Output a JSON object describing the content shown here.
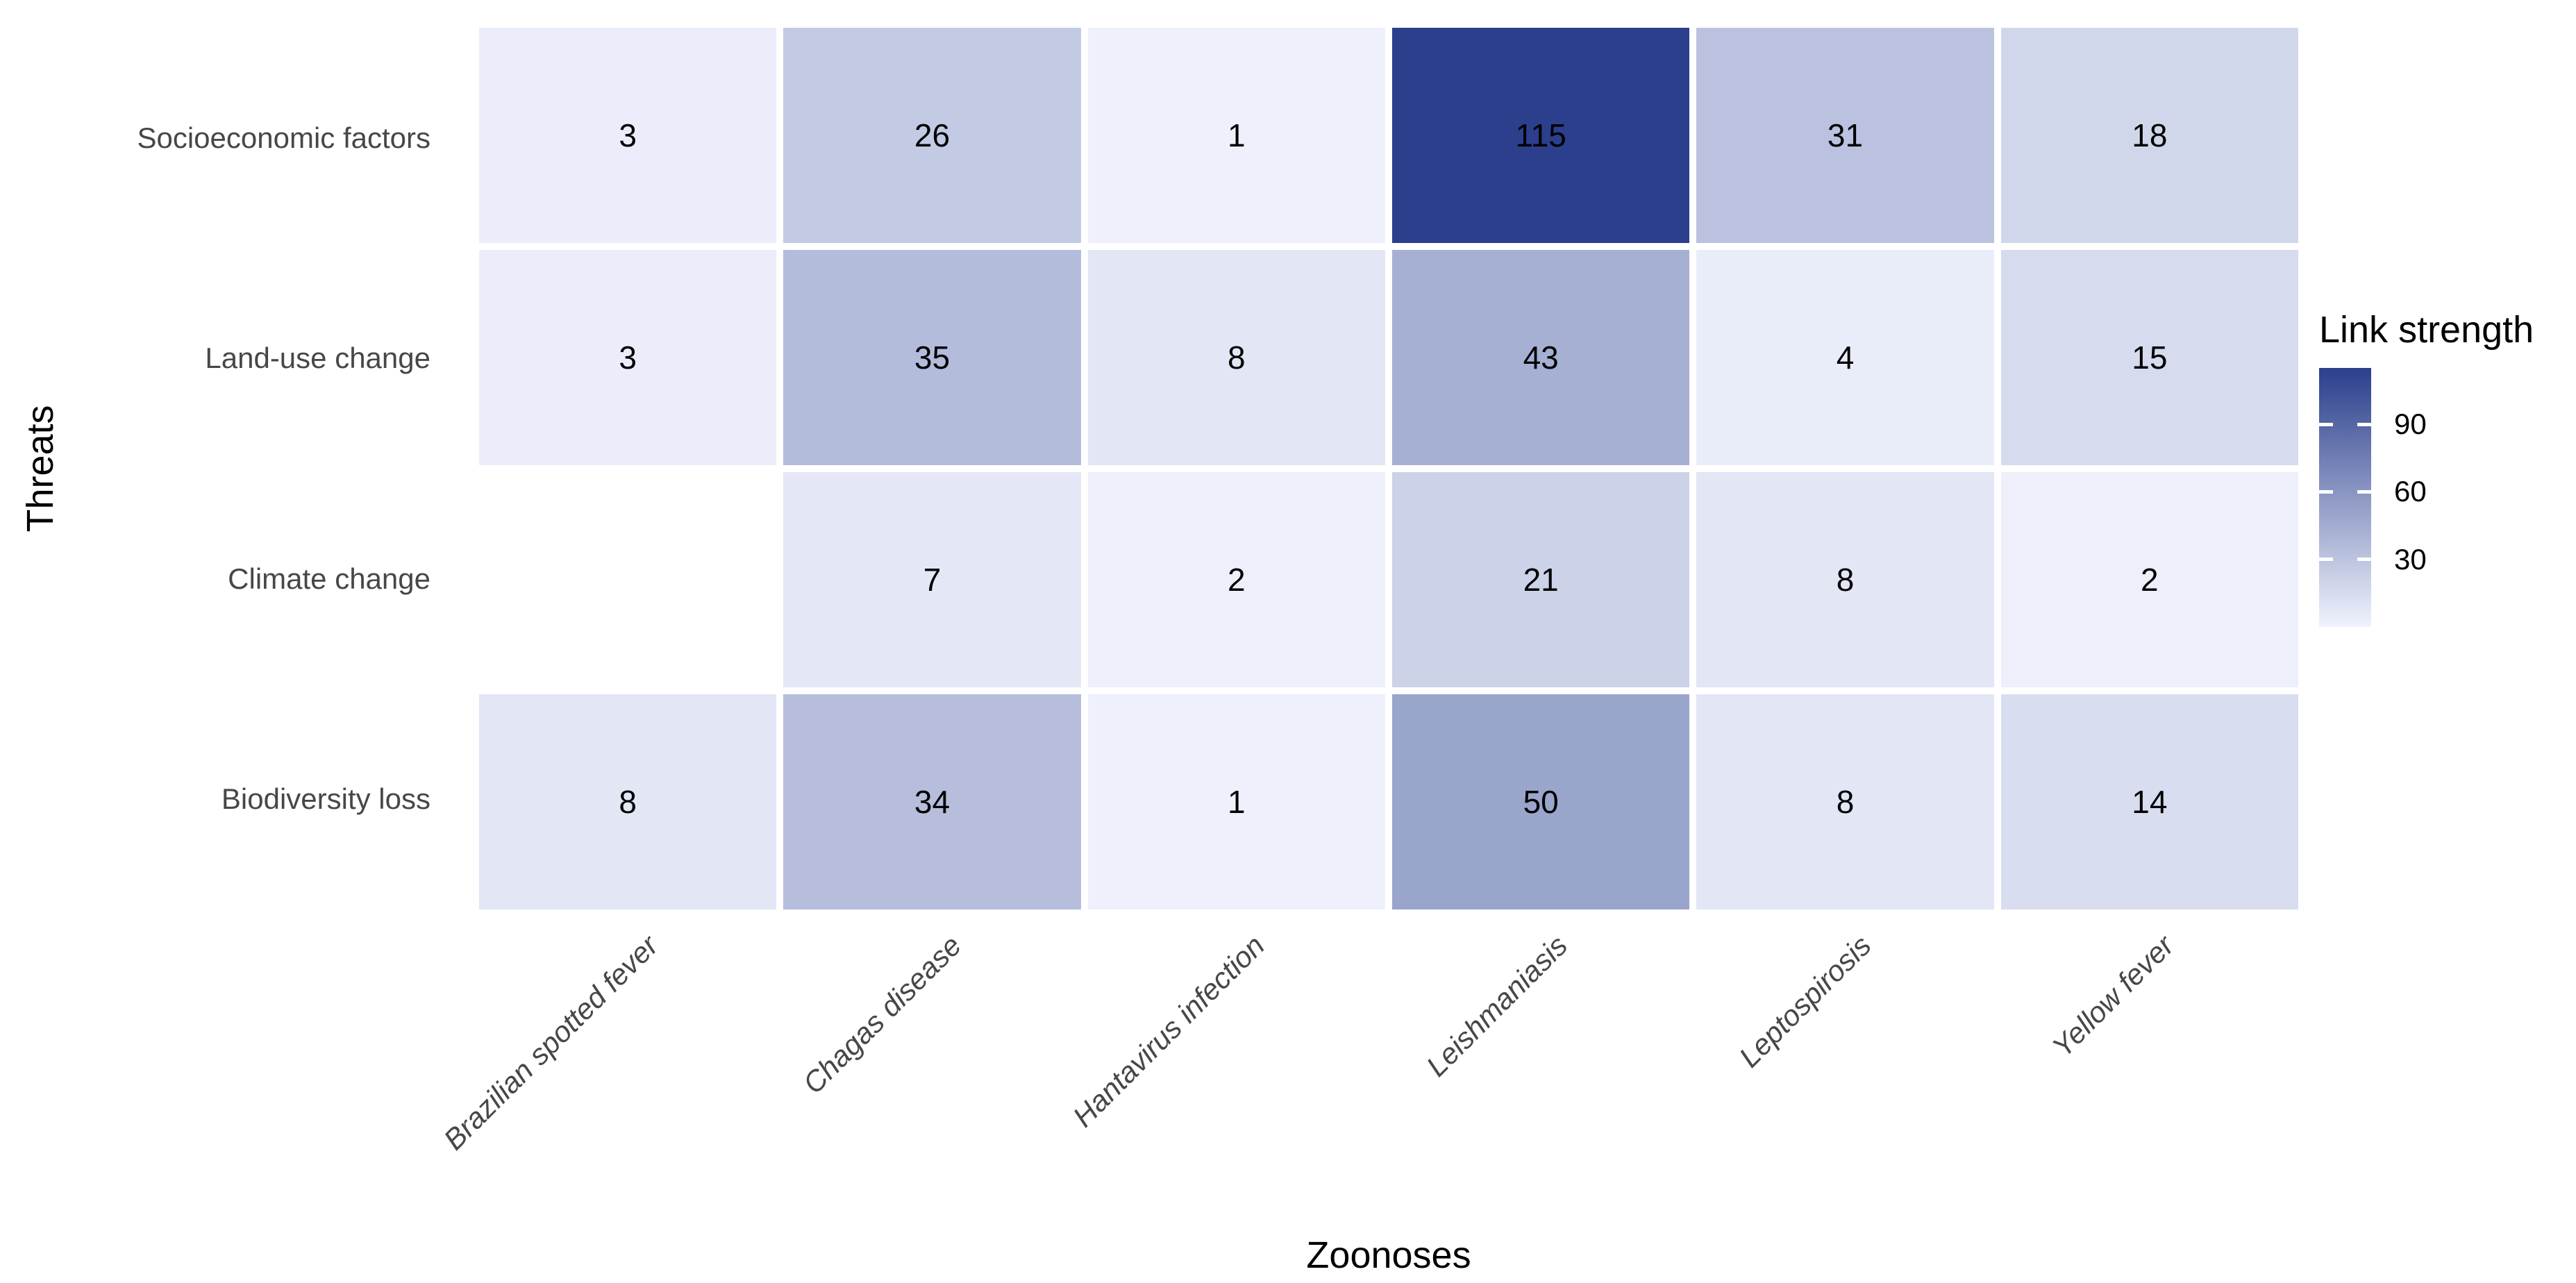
{
  "chart_data": {
    "type": "heatmap",
    "title": "",
    "xlabel": "Zoonoses",
    "ylabel": "Threats",
    "x_categories": [
      "Brazilian spotted fever",
      "Chagas disease",
      "Hantavirus infection",
      "Leishmaniasis",
      "Leptospirosis",
      "Yellow fever"
    ],
    "y_categories": [
      "Socioeconomic factors",
      "Land-use change",
      "Climate change",
      "Biodiversity loss"
    ],
    "values": [
      [
        3,
        26,
        1,
        115,
        31,
        18
      ],
      [
        3,
        35,
        8,
        43,
        4,
        15
      ],
      [
        null,
        7,
        2,
        21,
        8,
        2
      ],
      [
        8,
        34,
        1,
        50,
        8,
        14
      ]
    ],
    "legend": {
      "title": "Link strength",
      "ticks": [
        90,
        60,
        30
      ],
      "min": 0,
      "max": 115,
      "position": "right"
    },
    "colors": {
      "low": "#F0F3FD",
      "high": "#2B3F8C",
      "na_cell": "#FFFFFF",
      "background": "#FFFFFF",
      "axis_text": "#474747",
      "cell_text": "#000000",
      "title_text": "#000000",
      "legend_tick_mark": "#FFFFFF"
    },
    "grid_lines": false,
    "x_tick_rotation_deg": 45,
    "x_tick_italic": true
  }
}
